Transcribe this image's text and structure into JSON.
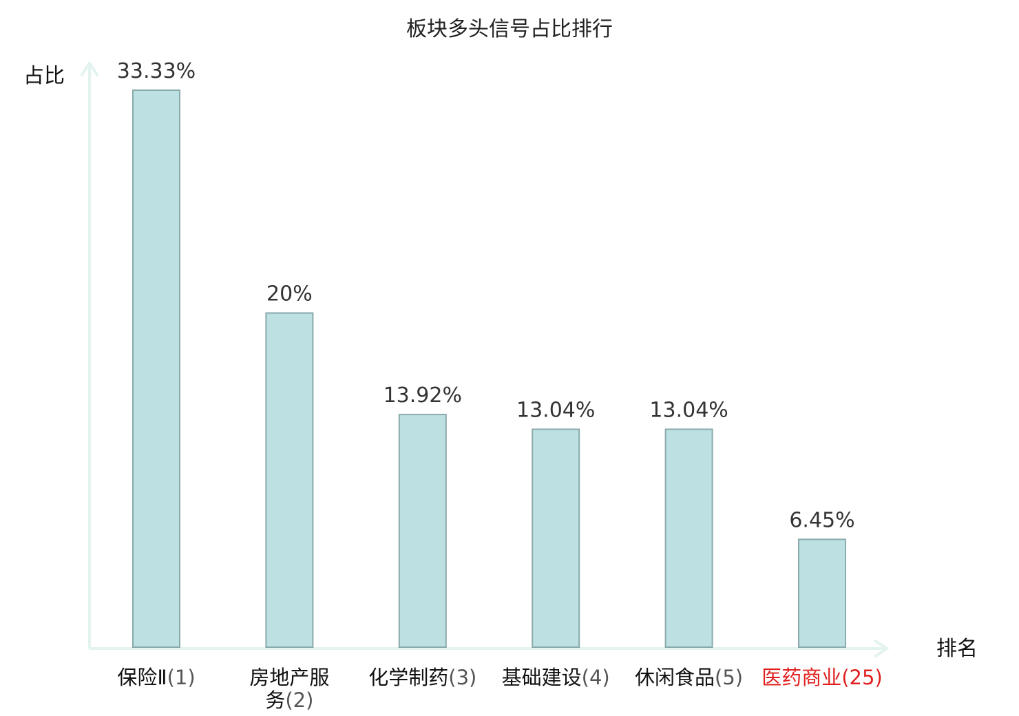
{
  "chart_data": {
    "type": "bar",
    "title": "板块多头信号占比排行",
    "ylabel": "占比",
    "xlabel": "排名",
    "ylim": [
      0,
      35
    ],
    "grid": false,
    "legend": "none",
    "categories": [
      "保险Ⅱ",
      "房地产服务",
      "化学制药",
      "基础建设",
      "休闲食品",
      "医药商业"
    ],
    "category_lines": [
      [
        "保险Ⅱ"
      ],
      [
        "房地产服",
        "务"
      ],
      [
        "化学制药"
      ],
      [
        "基础建设"
      ],
      [
        "休闲食品"
      ],
      [
        "医药商业"
      ]
    ],
    "ranks": [
      "(1)",
      "(2)",
      "(3)",
      "(4)",
      "(5)",
      "(25)"
    ],
    "values": [
      33.33,
      20,
      13.92,
      13.04,
      13.04,
      6.45
    ],
    "value_labels": [
      "33.33%",
      "20%",
      "13.92%",
      "13.04%",
      "13.04%",
      "6.45%"
    ],
    "highlight_index": 5,
    "colors": {
      "bar_fill": "#bde0e3",
      "bar_stroke": "#8aa9ab",
      "axis": "#e3f3ef",
      "highlight": "#e02020"
    }
  }
}
